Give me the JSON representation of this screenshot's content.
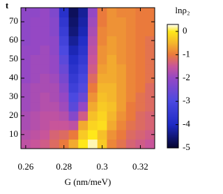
{
  "chart_data": {
    "type": "heatmap",
    "xlabel": "G (nm/meV)",
    "ylabel": "t",
    "colorbar_label": "lnρ₂",
    "x": [
      0.26,
      0.265,
      0.27,
      0.275,
      0.28,
      0.285,
      0.29,
      0.295,
      0.3,
      0.305,
      0.31,
      0.315,
      0.32,
      0.325
    ],
    "y": [
      5,
      10,
      15,
      20,
      25,
      30,
      35,
      40,
      45,
      50,
      55,
      60,
      65,
      70,
      75
    ],
    "z": [
      [
        -1.6,
        -1.5,
        -1.4,
        -1.2,
        -1.0,
        -0.6,
        0.0,
        0.2,
        -0.3,
        -0.9,
        -1.1,
        -1.3,
        -1.4,
        -1.5
      ],
      [
        -1.7,
        -1.6,
        -1.5,
        -1.3,
        -1.2,
        -1.0,
        -0.3,
        0.0,
        -0.4,
        -0.8,
        -1.0,
        -1.2,
        -1.3,
        -1.4
      ],
      [
        -1.8,
        -1.7,
        -1.6,
        -1.5,
        -1.5,
        -1.6,
        -0.6,
        -0.2,
        -0.1,
        -0.6,
        -0.9,
        -1.1,
        -1.2,
        -1.3
      ],
      [
        -1.8,
        -1.7,
        -1.6,
        -1.6,
        -1.7,
        -2.2,
        -1.4,
        -0.4,
        -0.2,
        -0.5,
        -0.8,
        -1.0,
        -1.2,
        -1.3
      ],
      [
        -1.9,
        -1.8,
        -1.7,
        -1.7,
        -1.9,
        -2.8,
        -2.0,
        -0.6,
        -0.3,
        -0.4,
        -0.7,
        -1.0,
        -1.1,
        -1.2
      ],
      [
        -1.9,
        -1.8,
        -1.7,
        -1.8,
        -2.0,
        -3.0,
        -2.6,
        -0.8,
        -0.4,
        -0.5,
        -0.7,
        -0.9,
        -1.1,
        -1.2
      ],
      [
        -1.9,
        -1.8,
        -1.8,
        -1.8,
        -2.2,
        -3.3,
        -2.9,
        -1.0,
        -0.5,
        -0.5,
        -0.7,
        -0.9,
        -1.0,
        -1.2
      ],
      [
        -2.0,
        -1.9,
        -1.8,
        -1.9,
        -2.4,
        -3.5,
        -3.1,
        -1.2,
        -0.6,
        -0.6,
        -0.7,
        -0.9,
        -1.0,
        -1.1
      ],
      [
        -2.0,
        -1.9,
        -1.9,
        -2.0,
        -2.6,
        -3.7,
        -3.3,
        -1.4,
        -0.7,
        -0.6,
        -0.7,
        -0.9,
        -1.0,
        -1.1
      ],
      [
        -2.0,
        -1.9,
        -1.9,
        -2.0,
        -2.8,
        -3.9,
        -3.5,
        -1.5,
        -0.8,
        -0.6,
        -0.8,
        -0.9,
        -1.0,
        -1.1
      ],
      [
        -2.0,
        -2.0,
        -1.9,
        -2.1,
        -3.0,
        -4.1,
        -3.7,
        -1.6,
        -0.8,
        -0.7,
        -0.8,
        -0.9,
        -1.0,
        -1.1
      ],
      [
        -2.1,
        -2.0,
        -2.0,
        -2.1,
        -3.2,
        -4.3,
        -3.9,
        -1.7,
        -0.9,
        -0.7,
        -0.8,
        -0.9,
        -1.0,
        -1.1
      ],
      [
        -2.1,
        -2.0,
        -2.0,
        -2.2,
        -3.4,
        -4.5,
        -4.1,
        -1.8,
        -0.9,
        -0.8,
        -0.8,
        -0.9,
        -1.0,
        -1.0
      ],
      [
        -2.1,
        -2.0,
        -2.0,
        -2.2,
        -3.6,
        -4.6,
        -4.2,
        -1.9,
        -1.0,
        -0.8,
        -0.8,
        -0.9,
        -1.0,
        -1.0
      ],
      [
        -2.1,
        -2.1,
        -2.0,
        -2.3,
        -3.8,
        -4.7,
        -4.3,
        -2.0,
        -1.0,
        -0.8,
        -0.9,
        -0.9,
        -1.0,
        -1.0
      ]
    ],
    "xlim": [
      0.2575,
      0.3275
    ],
    "xticks": [
      0.26,
      0.28,
      0.3,
      0.32
    ],
    "ylim": [
      2.5,
      77.5
    ],
    "yticks": [
      10,
      20,
      30,
      40,
      50,
      60,
      70
    ],
    "zlim": [
      -5,
      0.3
    ],
    "zticks": [
      0,
      -1,
      -2,
      -3,
      -4,
      -5
    ],
    "colormap": [
      {
        "value": -5,
        "color": "#05052e"
      },
      {
        "value": -4,
        "color": "#1f2bc4"
      },
      {
        "value": -3,
        "color": "#4b49e0"
      },
      {
        "value": -2,
        "color": "#9548c4"
      },
      {
        "value": -1.5,
        "color": "#c8559a"
      },
      {
        "value": -1,
        "color": "#ea7a3c"
      },
      {
        "value": -0.5,
        "color": "#f4b62c"
      },
      {
        "value": 0,
        "color": "#ffe81a"
      },
      {
        "value": 0.3,
        "color": "#ffffff"
      }
    ]
  }
}
